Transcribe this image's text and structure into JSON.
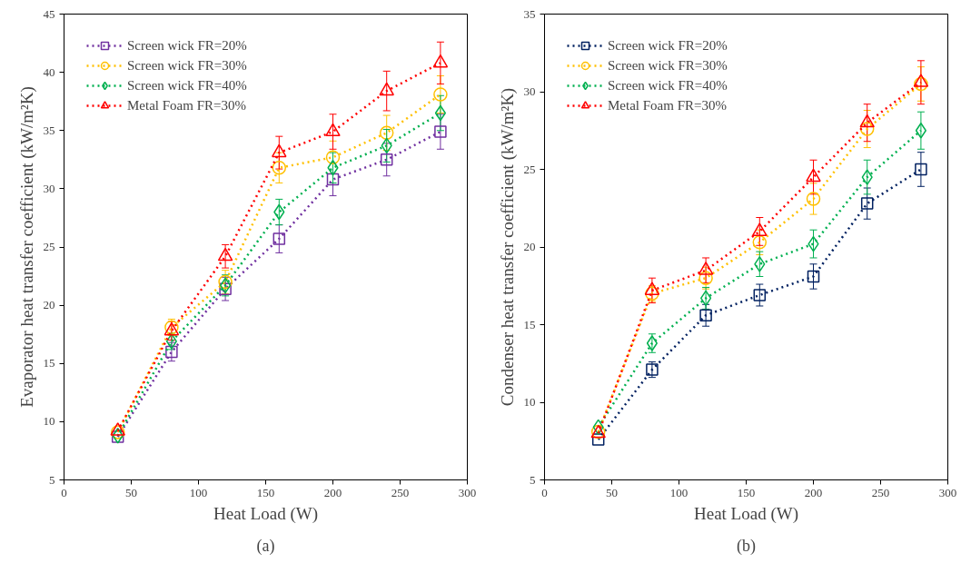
{
  "chart_data": [
    {
      "type": "line",
      "xlabel": "Heat Load (W)",
      "ylabel": "Evaporator heat transfer coefficient (kW/m²K)",
      "annotations": [
        "(a)"
      ],
      "x": [
        40,
        80,
        120,
        160,
        200,
        240,
        280
      ],
      "xlim": [
        0,
        300
      ],
      "xticks": [
        0,
        50,
        100,
        150,
        200,
        250,
        300
      ],
      "ylim": [
        5,
        45
      ],
      "yticks": [
        5,
        10,
        15,
        20,
        25,
        30,
        35,
        40,
        45
      ],
      "grid": false,
      "legend": "top left",
      "line_style": "dotted",
      "series": [
        {
          "name": "Screen wick FR=20%",
          "color": "#7030a0",
          "marker": "square",
          "values": [
            8.7,
            16.0,
            21.4,
            25.7,
            30.8,
            32.5,
            34.9
          ],
          "errors": [
            null,
            0.8,
            1.0,
            1.2,
            1.4,
            1.4,
            1.5
          ]
        },
        {
          "name": "Screen wick FR=30%",
          "color": "#ffc000",
          "marker": "circle",
          "values": [
            9.1,
            18.1,
            22.0,
            31.8,
            32.7,
            34.8,
            38.1
          ],
          "errors": [
            null,
            0.7,
            1.0,
            1.3,
            1.4,
            1.5,
            1.6
          ]
        },
        {
          "name": "Screen wick FR=40%",
          "color": "#00b050",
          "marker": "diamond",
          "values": [
            8.8,
            16.9,
            21.7,
            28.0,
            31.8,
            33.7,
            36.5
          ],
          "errors": [
            null,
            0.7,
            0.9,
            1.1,
            1.3,
            1.4,
            1.5
          ]
        },
        {
          "name": "Metal Foam FR=30%",
          "color": "#ff0000",
          "marker": "triangle",
          "values": [
            9.2,
            17.8,
            24.2,
            33.1,
            34.9,
            38.4,
            40.8
          ],
          "errors": [
            null,
            0.8,
            1.0,
            1.4,
            1.5,
            1.7,
            1.8
          ]
        }
      ]
    },
    {
      "type": "line",
      "xlabel": "Heat Load (W)",
      "ylabel": "Condenser heat transfer coefficient (kW/m²K)",
      "annotations": [
        "(b)"
      ],
      "x": [
        40,
        80,
        120,
        160,
        200,
        240,
        280
      ],
      "xlim": [
        0,
        300
      ],
      "xticks": [
        0,
        50,
        100,
        150,
        200,
        250,
        300
      ],
      "ylim": [
        5,
        35
      ],
      "yticks": [
        5,
        10,
        15,
        20,
        25,
        30,
        35
      ],
      "grid": false,
      "legend": "top left",
      "line_style": "dotted",
      "series": [
        {
          "name": "Screen wick FR=20%",
          "color": "#002060",
          "marker": "square",
          "values": [
            7.6,
            12.1,
            15.6,
            16.9,
            18.1,
            22.8,
            25.0
          ],
          "errors": [
            null,
            0.5,
            0.7,
            0.7,
            0.8,
            1.0,
            1.1
          ]
        },
        {
          "name": "Screen wick FR=30%",
          "color": "#ffc000",
          "marker": "circle",
          "values": [
            8.1,
            17.0,
            18.0,
            20.3,
            23.1,
            27.6,
            30.5
          ],
          "errors": [
            null,
            0.5,
            0.7,
            0.8,
            1.0,
            1.2,
            1.1
          ]
        },
        {
          "name": "Screen wick FR=40%",
          "color": "#00b050",
          "marker": "diamond",
          "values": [
            8.4,
            13.8,
            16.7,
            18.9,
            20.2,
            24.5,
            27.5
          ],
          "errors": [
            null,
            0.6,
            0.7,
            0.8,
            0.9,
            1.1,
            1.2
          ]
        },
        {
          "name": "Metal Foam FR=30%",
          "color": "#ff0000",
          "marker": "triangle",
          "values": [
            8.0,
            17.2,
            18.5,
            21.0,
            24.5,
            28.0,
            30.6
          ],
          "errors": [
            null,
            0.8,
            0.8,
            0.9,
            1.1,
            1.2,
            1.4
          ]
        }
      ]
    }
  ]
}
